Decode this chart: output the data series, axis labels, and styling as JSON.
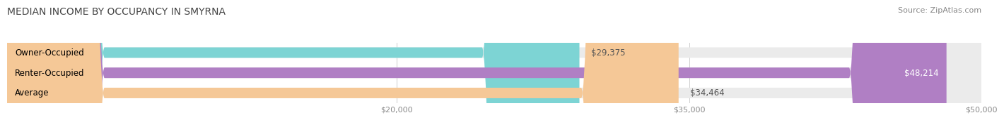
{
  "title": "MEDIAN INCOME BY OCCUPANCY IN SMYRNA",
  "source": "Source: ZipAtlas.com",
  "categories": [
    "Owner-Occupied",
    "Renter-Occupied",
    "Average"
  ],
  "values": [
    29375,
    48214,
    34464
  ],
  "bar_colors": [
    "#7dd4d4",
    "#b07fc4",
    "#f5c897"
  ],
  "bar_bg_color": "#ebebeb",
  "value_labels": [
    "$29,375",
    "$48,214",
    "$34,464"
  ],
  "xlim": [
    0,
    50000
  ],
  "xticks": [
    20000,
    35000,
    50000
  ],
  "xtick_labels": [
    "$20,000",
    "$35,000",
    "$50,000"
  ],
  "title_fontsize": 10,
  "label_fontsize": 8.5,
  "tick_fontsize": 8,
  "source_fontsize": 8,
  "bar_height": 0.52,
  "background_color": "#ffffff"
}
